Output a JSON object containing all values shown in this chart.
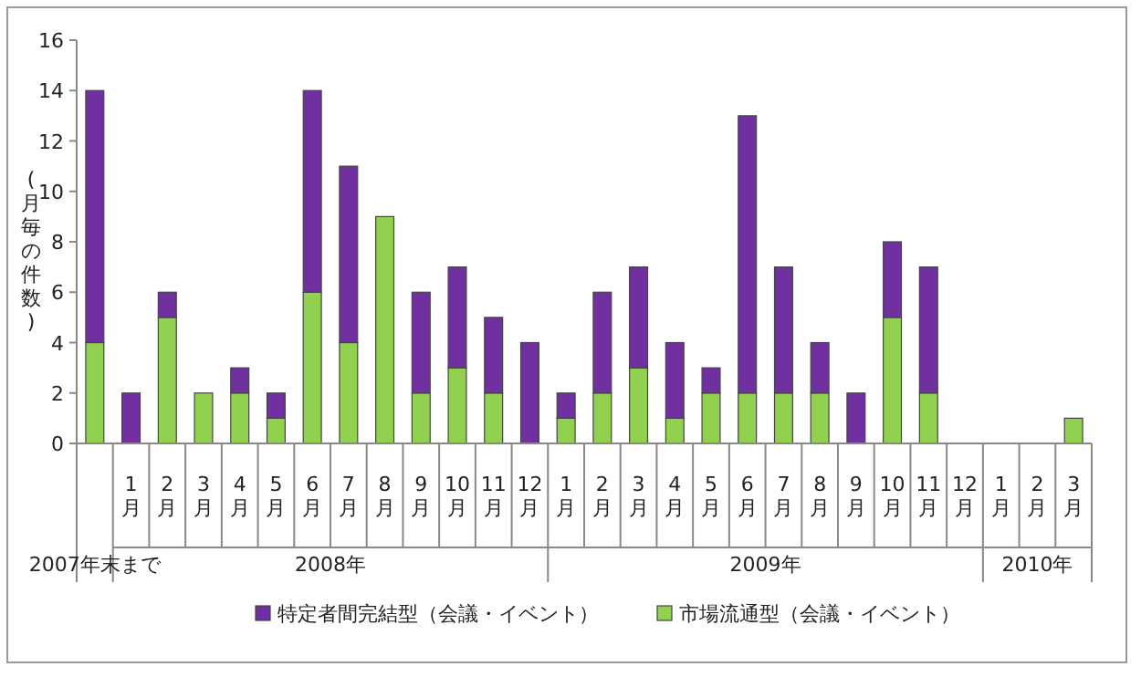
{
  "chart_data": {
    "type": "bar",
    "stacked": true,
    "ylabel": "(月毎の件数)",
    "legend": "bottom",
    "categories": [
      null,
      "1月",
      "2月",
      "3月",
      "4月",
      "5月",
      "6月",
      "7月",
      "8月",
      "9月",
      "10月",
      "11月",
      "12月",
      "1月",
      "2月",
      "3月",
      "4月",
      "5月",
      "6月",
      "7月",
      "8月",
      "9月",
      "10月",
      "11月",
      "12月",
      "1月",
      "2月",
      "3月"
    ],
    "series": [
      {
        "name": "市場流通型（会議・イベント）",
        "color": "#92d050",
        "values": [
          4,
          0,
          5,
          2,
          2,
          1,
          6,
          4,
          9,
          2,
          3,
          2,
          0,
          1,
          2,
          3,
          1,
          2,
          2,
          2,
          2,
          0,
          5,
          2,
          0,
          0,
          0,
          1
        ]
      },
      {
        "name": "特定者間完結型（会議・イベント）",
        "color": "#7030a0",
        "values": [
          10,
          2,
          1,
          0,
          1,
          1,
          8,
          7,
          0,
          4,
          4,
          3,
          4,
          1,
          4,
          4,
          3,
          1,
          11,
          5,
          2,
          2,
          3,
          5,
          0,
          0,
          0,
          0
        ]
      }
    ],
    "ylim": [
      0,
      16
    ],
    "yticks": [
      0,
      2,
      4,
      6,
      8,
      10,
      12,
      14,
      16
    ],
    "annotations": [
      "2007年末まで",
      "2008年",
      "2009年",
      "2010年"
    ]
  }
}
